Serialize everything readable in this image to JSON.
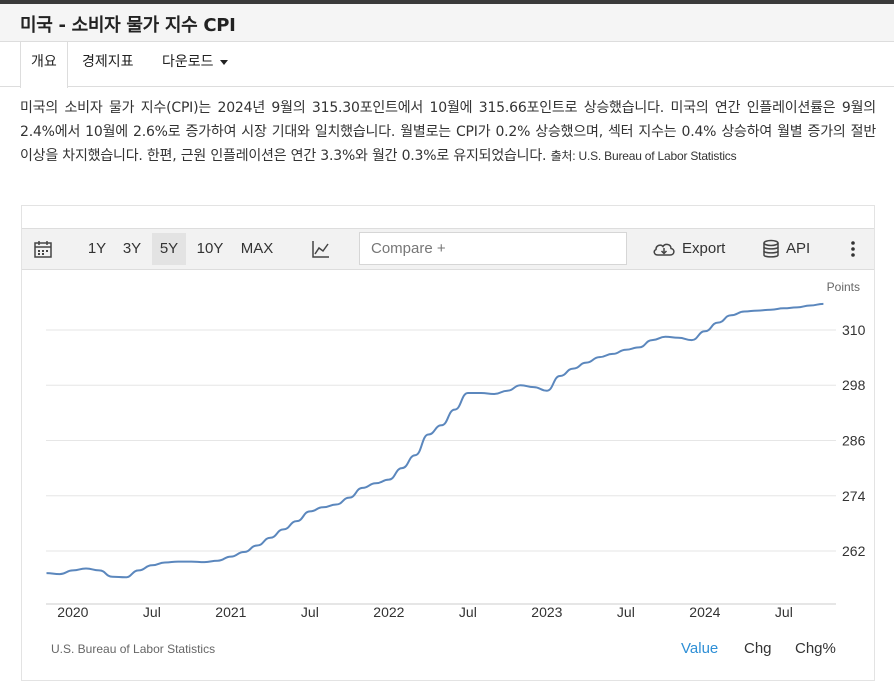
{
  "header": {
    "title": "미국 - 소비자 물가 지수 CPI"
  },
  "tabs": [
    {
      "label": "개요"
    },
    {
      "label": "경제지표"
    },
    {
      "label": "다운로드"
    }
  ],
  "description": {
    "text": "미국의 소비자 물가 지수(CPI)는 2024년 9월의 315.30포인트에서 10월에 315.66포인트로 상승했습니다. 미국의 연간 인플레이션률은 9월의 2.4%에서 10월에 2.6%로 증가하여 시장 기대와 일치했습니다. 월별로는 CPI가 0.2% 상승했으며, 섹터 지수는 0.4% 상승하여 월별 증가의 절반 이상을 차지했습니다. 한편, 근원 인플레이션은 연간 3.3%와 월간 0.3%로 유지되었습니다.",
    "source": "출처: U.S. Bureau of Labor Statistics"
  },
  "toolbar": {
    "ranges": [
      "1Y",
      "3Y",
      "5Y",
      "10Y",
      "MAX"
    ],
    "selected_range": "5Y",
    "compare_placeholder": "Compare +",
    "export_label": "Export",
    "api_label": "API"
  },
  "footer": {
    "source": "U.S. Bureau of Labor Statistics",
    "modes": [
      "Value",
      "Chg",
      "Chg%"
    ],
    "active_mode": "Value"
  },
  "colors": {
    "line": "#5b87bd",
    "active": "#2e8fd6",
    "grid": "#e6e6e6"
  },
  "chart_data": {
    "type": "line",
    "ylabel": "Points",
    "yticks": [
      262,
      274,
      286,
      298,
      310
    ],
    "ylim": [
      250.5,
      316.5
    ],
    "xlim": [
      2019.83,
      2024.83
    ],
    "x_tick_labels": [
      {
        "x": 2020.0,
        "label": "2020"
      },
      {
        "x": 2020.5,
        "label": "Jul"
      },
      {
        "x": 2021.0,
        "label": "2021"
      },
      {
        "x": 2021.5,
        "label": "Jul"
      },
      {
        "x": 2022.0,
        "label": "2022"
      },
      {
        "x": 2022.5,
        "label": "Jul"
      },
      {
        "x": 2023.0,
        "label": "2023"
      },
      {
        "x": 2023.5,
        "label": "Jul"
      },
      {
        "x": 2024.0,
        "label": "2024"
      },
      {
        "x": 2024.5,
        "label": "Jul"
      }
    ],
    "grid": true,
    "series": [
      {
        "x": [
          "2019-11",
          "2019-12",
          "2020-01",
          "2020-02",
          "2020-03",
          "2020-04",
          "2020-05",
          "2020-06",
          "2020-07",
          "2020-08",
          "2020-09",
          "2020-10",
          "2020-11",
          "2020-12",
          "2021-01",
          "2021-02",
          "2021-03",
          "2021-04",
          "2021-05",
          "2021-06",
          "2021-07",
          "2021-08",
          "2021-09",
          "2021-10",
          "2021-11",
          "2021-12",
          "2022-01",
          "2022-02",
          "2022-03",
          "2022-04",
          "2022-05",
          "2022-06",
          "2022-07",
          "2022-08",
          "2022-09",
          "2022-10",
          "2022-11",
          "2022-12",
          "2023-01",
          "2023-02",
          "2023-03",
          "2023-04",
          "2023-05",
          "2023-06",
          "2023-07",
          "2023-08",
          "2023-09",
          "2023-10",
          "2023-11",
          "2023-12",
          "2024-01",
          "2024-02",
          "2024-03",
          "2024-04",
          "2024-05",
          "2024-06",
          "2024-07",
          "2024-08",
          "2024-09",
          "2024-10"
        ],
        "values": [
          257.2,
          257.0,
          257.8,
          258.2,
          257.8,
          256.4,
          256.3,
          257.8,
          258.9,
          259.5,
          259.7,
          259.7,
          259.6,
          259.9,
          260.8,
          261.8,
          263.2,
          264.9,
          266.7,
          268.5,
          270.6,
          271.5,
          272.1,
          273.6,
          275.7,
          276.7,
          277.5,
          280.0,
          282.8,
          287.3,
          289.3,
          292.7,
          296.3,
          296.3,
          296.1,
          296.8,
          298.0,
          297.6,
          296.8,
          300.0,
          301.6,
          302.9,
          304.1,
          304.8,
          305.7,
          306.2,
          307.8,
          308.5,
          308.3,
          307.8,
          309.7,
          311.6,
          313.2,
          314.0,
          314.2,
          314.4,
          314.7,
          314.9,
          315.3,
          315.66
        ]
      }
    ]
  }
}
